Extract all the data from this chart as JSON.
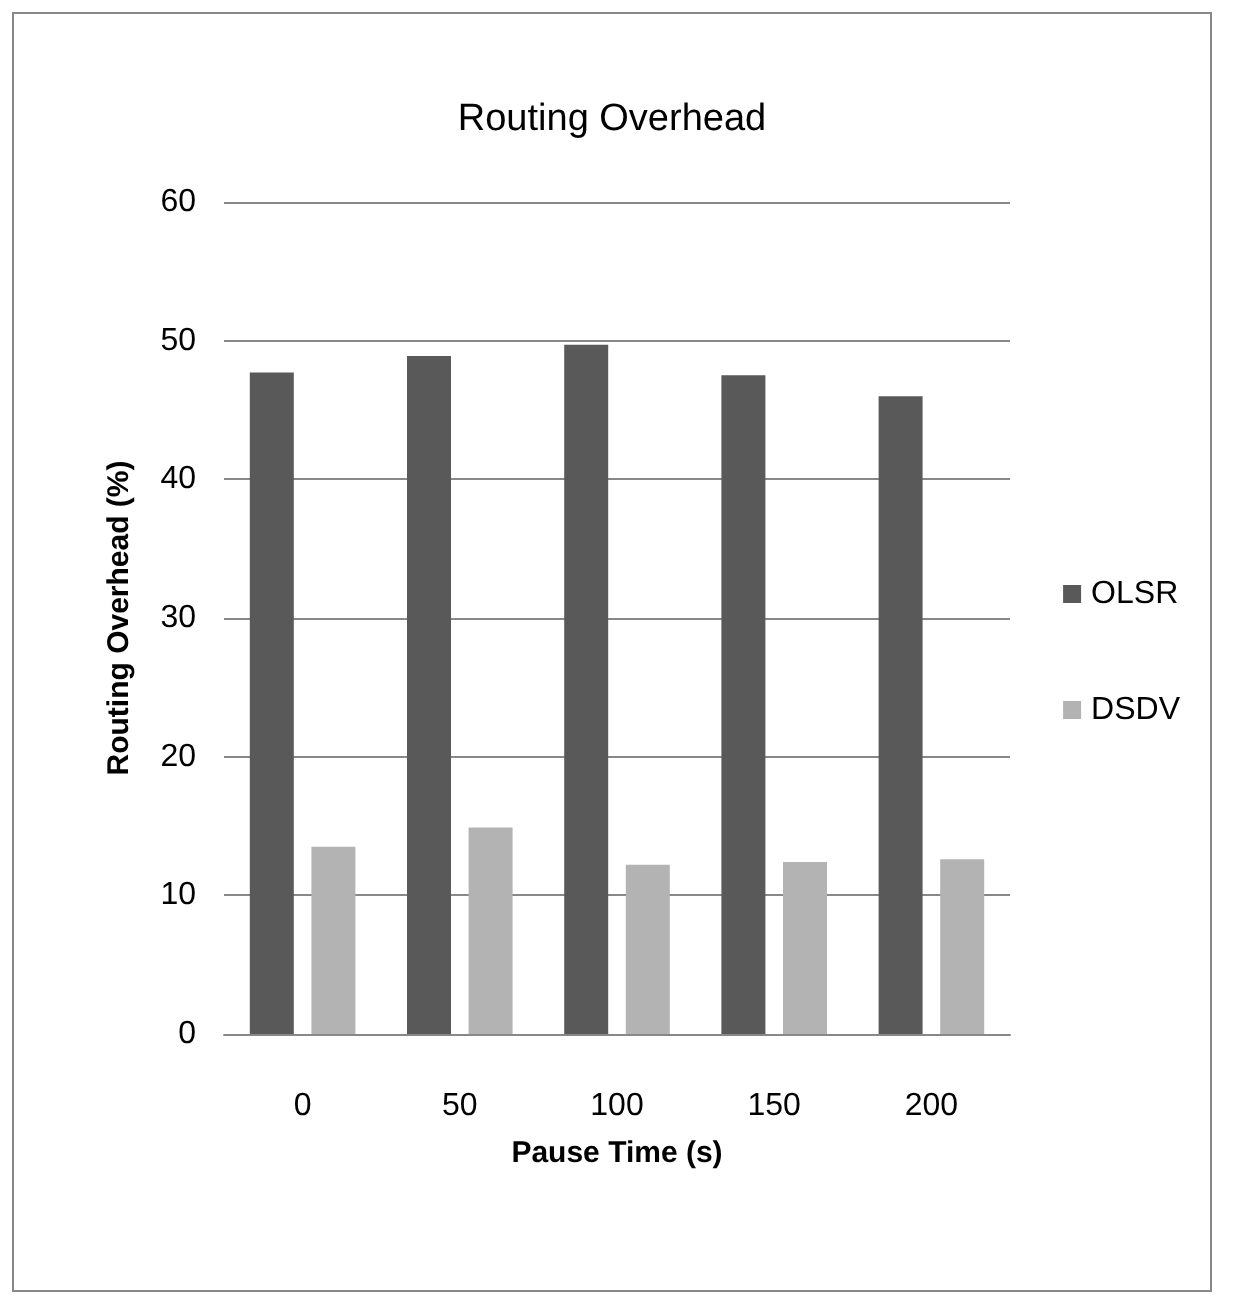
{
  "chart_data": {
    "type": "bar",
    "title": "Routing Overhead",
    "xlabel": "Pause Time (s)",
    "ylabel": "Routing Overhead (%)",
    "categories": [
      "0",
      "50",
      "100",
      "150",
      "200"
    ],
    "series": [
      {
        "name": "OLSR",
        "color": "#595959",
        "values": [
          47.7,
          48.9,
          49.7,
          47.5,
          46.0
        ]
      },
      {
        "name": "DSDV",
        "color": "#b3b3b3",
        "values": [
          13.5,
          14.9,
          12.2,
          12.4,
          12.6
        ]
      }
    ],
    "ylim": [
      0,
      60
    ],
    "yticks": [
      0,
      10,
      20,
      30,
      40,
      50,
      60
    ],
    "grid": "y",
    "legend": "right"
  }
}
